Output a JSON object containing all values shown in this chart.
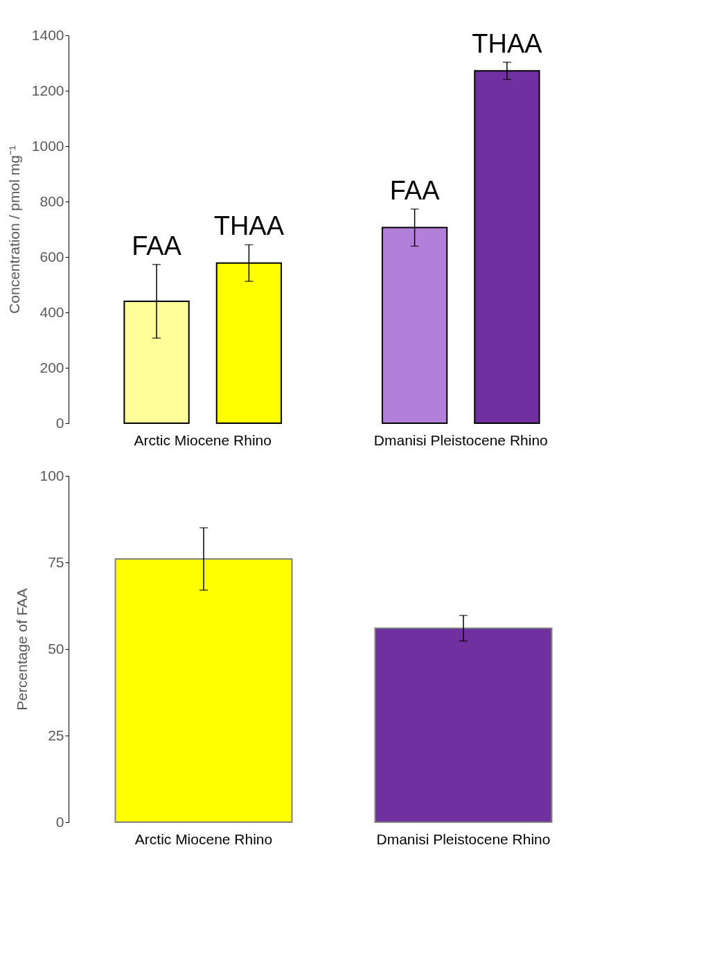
{
  "chart_data": [
    {
      "type": "bar",
      "ylabel": "Concentration / pmol mg⁻¹",
      "categories": [
        "Arctic Miocene Rhino",
        "Dmanisi Pleistocene Rhino"
      ],
      "series": [
        {
          "name": "FAA",
          "colors": [
            "#ffff99",
            "#b380d9"
          ],
          "values": [
            440,
            706
          ],
          "errors": [
            133,
            67
          ]
        },
        {
          "name": "THAA",
          "colors": [
            "#ffff00",
            "#7030a0"
          ],
          "values": [
            578,
            1272
          ],
          "errors": [
            66,
            31
          ]
        }
      ],
      "ylim": [
        0,
        1400
      ],
      "yticks": [
        0,
        200,
        400,
        600,
        800,
        1000,
        1200,
        1400
      ],
      "grid": false
    },
    {
      "type": "bar",
      "ylabel": "Percentage of FAA",
      "categories": [
        "Arctic Miocene Rhino",
        "Dmanisi Pleistocene Rhino"
      ],
      "colors": [
        "#ffff00",
        "#7030a0"
      ],
      "values": [
        76,
        56
      ],
      "errors": [
        9,
        3.7
      ],
      "ylim": [
        0,
        100
      ],
      "yticks": [
        0,
        25,
        50,
        75,
        100
      ],
      "grid": false
    }
  ]
}
